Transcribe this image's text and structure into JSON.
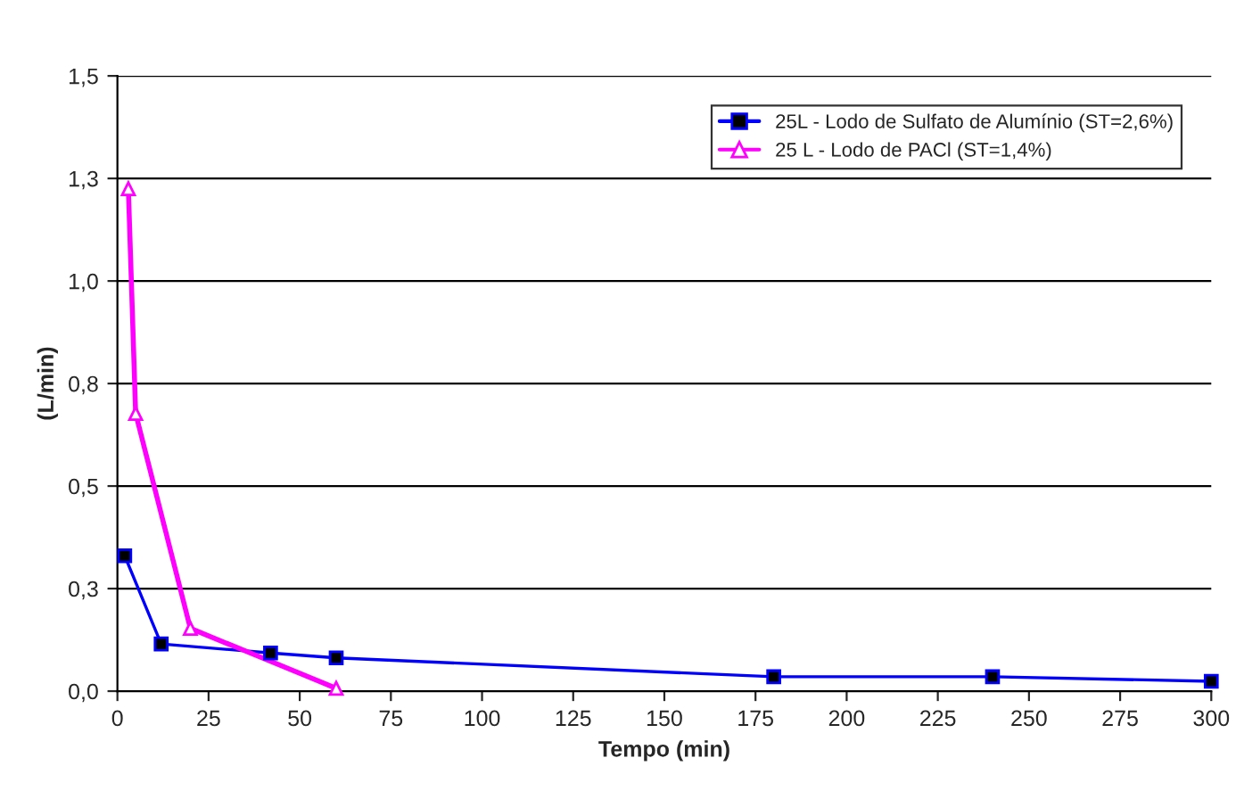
{
  "chart_data": {
    "type": "line",
    "xlabel": "Tempo (min)",
    "ylabel": "(L/min)",
    "xlim": [
      0,
      300
    ],
    "xticks": [
      0,
      25,
      50,
      75,
      100,
      125,
      150,
      175,
      200,
      225,
      250,
      275,
      300
    ],
    "ylim": [
      0,
      1.5
    ],
    "yticks": [
      {
        "value": 0,
        "label": "0,0"
      },
      {
        "value": 0.25,
        "label": "0,3"
      },
      {
        "value": 0.5,
        "label": "0,5"
      },
      {
        "value": 0.75,
        "label": "0,8"
      },
      {
        "value": 1.0,
        "label": "1,0"
      },
      {
        "value": 1.25,
        "label": "1,3"
      },
      {
        "value": 1.5,
        "label": "1,5"
      }
    ],
    "grid": "y",
    "legend": "top right",
    "series": [
      {
        "name": "25L - Lodo de Sulfato de Alumínio (ST=2,6%)",
        "color": "#0000ff",
        "marker": "square",
        "x": [
          2,
          12,
          42,
          60,
          180,
          240,
          300
        ],
        "values": [
          0.33,
          0.115,
          0.093,
          0.081,
          0.035,
          0.035,
          0.024
        ]
      },
      {
        "name": "25 L - Lodo de PACl (ST=1,4%)",
        "color": "#ff00ff",
        "marker": "triangle",
        "x": [
          3,
          5,
          20,
          60
        ],
        "values": [
          1.225,
          0.677,
          0.153,
          0.007
        ]
      }
    ]
  }
}
